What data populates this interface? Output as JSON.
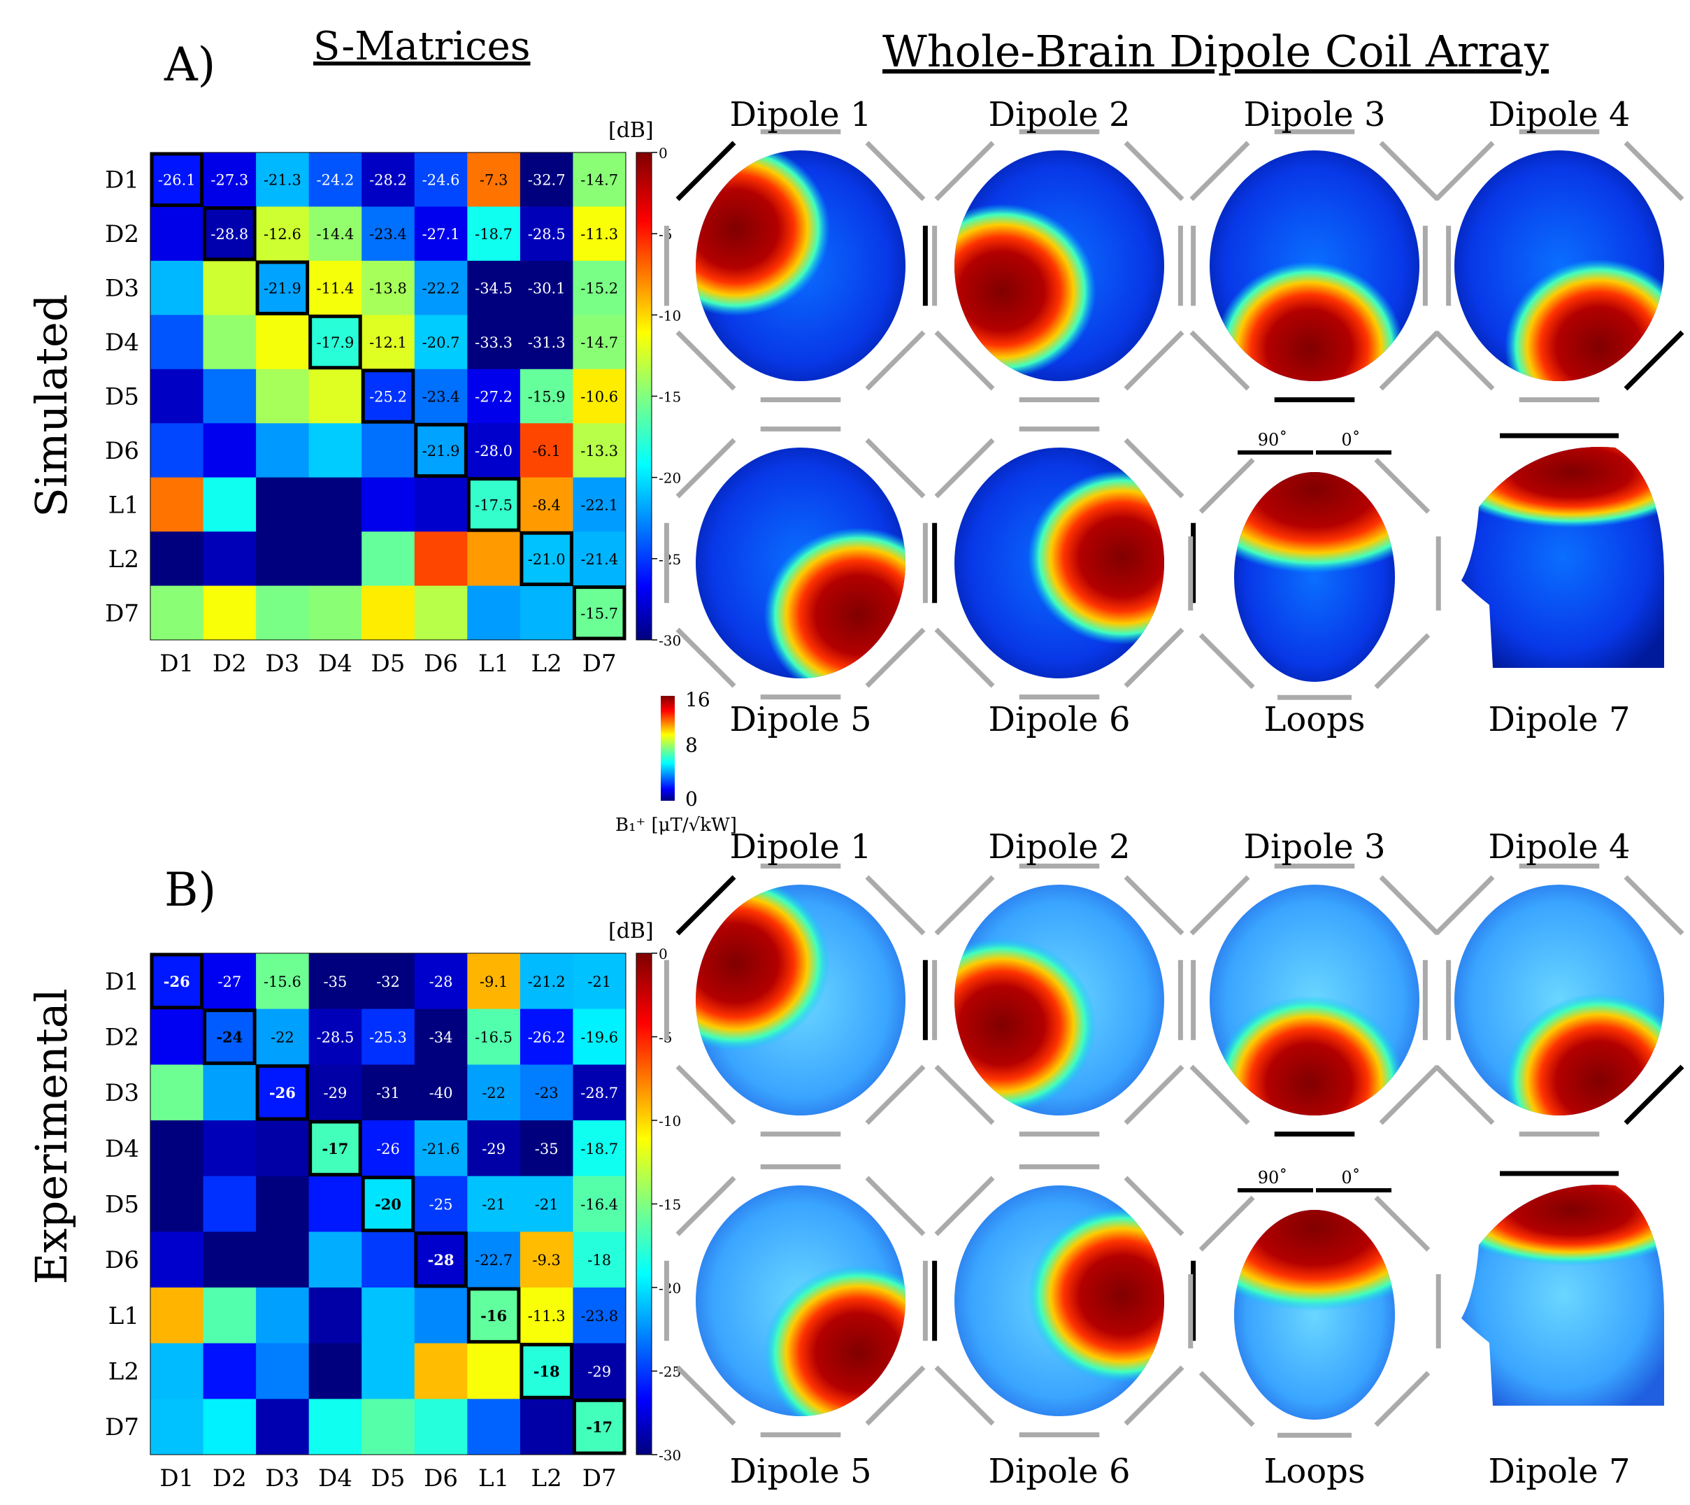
{
  "panel_a": {
    "letter": "A)",
    "s_title": "S-Matrices",
    "array_title": "Whole-Brain Dipole Coil Array",
    "row_label": "Simulated"
  },
  "panel_b": {
    "letter": "B)",
    "row_label": "Experimental"
  },
  "colors": {
    "hot": "#7f0000",
    "cold": "#00007f",
    "element_line": "#000000",
    "coil_outline": "#aaaaaa"
  },
  "chart_data": [
    {
      "type": "heatmap",
      "title": "S-Matrices (Simulated)",
      "units_label": "[dB]",
      "rows": [
        "D1",
        "D2",
        "D3",
        "D4",
        "D5",
        "D6",
        "L1",
        "L2",
        "D7"
      ],
      "cols": [
        "D1",
        "D2",
        "D3",
        "D4",
        "D5",
        "D6",
        "L1",
        "L2",
        "D7"
      ],
      "colorbar": {
        "ticks": [
          "0",
          "-5",
          "-10",
          "-15",
          "-20",
          "-25",
          "-30"
        ],
        "range": [
          -30,
          0
        ],
        "colormap": "jet"
      },
      "values": [
        [
          -26.1,
          -27.3,
          -21.3,
          -24.2,
          -28.2,
          -24.6,
          -7.3,
          -32.7,
          -14.7
        ],
        [
          -27.3,
          -28.8,
          -12.6,
          -14.4,
          -23.4,
          -27.1,
          -18.7,
          -28.5,
          -11.3
        ],
        [
          -21.3,
          -12.6,
          -21.9,
          -11.4,
          -13.8,
          -22.2,
          -34.5,
          -30.1,
          -15.2
        ],
        [
          -24.2,
          -14.4,
          -11.4,
          -17.9,
          -12.1,
          -20.7,
          -33.3,
          -31.3,
          -14.7
        ],
        [
          -28.2,
          -23.4,
          -13.8,
          -12.1,
          -25.2,
          -23.4,
          -27.2,
          -15.9,
          -10.6
        ],
        [
          -24.6,
          -27.1,
          -22.2,
          -20.7,
          -23.4,
          -21.9,
          -28.0,
          -6.1,
          -13.3
        ],
        [
          -7.3,
          -18.7,
          -34.5,
          -33.3,
          -27.2,
          -28.0,
          -17.5,
          -8.4,
          -22.1
        ],
        [
          -32.7,
          -28.5,
          -30.1,
          -31.3,
          -15.9,
          -6.1,
          -8.4,
          -21.0,
          -21.4
        ],
        [
          -14.7,
          -11.3,
          -15.2,
          -14.7,
          -10.6,
          -13.3,
          -22.1,
          -21.4,
          -15.7
        ]
      ],
      "cell_labels": [
        [
          "-26.1",
          "-27.3",
          "-21.3",
          "-24.2",
          "-28.2",
          "-24.6",
          "-7.3",
          "-32.7",
          "-14.7"
        ],
        [
          "",
          "-28.8",
          "-12.6",
          "-14.4",
          "-23.4",
          "-27.1",
          "-18.7",
          "-28.5",
          "-11.3"
        ],
        [
          "",
          "",
          "-21.9",
          "-11.4",
          "-13.8",
          "-22.2",
          "-34.5",
          "-30.1",
          "-15.2"
        ],
        [
          "",
          "",
          "",
          "-17.9",
          "-12.1",
          "-20.7",
          "-33.3",
          "-31.3",
          "-14.7"
        ],
        [
          "",
          "",
          "",
          "",
          "-25.2",
          "-23.4",
          "-27.2",
          "-15.9",
          "-10.6"
        ],
        [
          "",
          "",
          "",
          "",
          "",
          "-21.9",
          "-28.0",
          "-6.1",
          "-13.3"
        ],
        [
          "",
          "",
          "",
          "",
          "",
          "",
          "-17.5",
          "-8.4",
          "-22.1"
        ],
        [
          "",
          "",
          "",
          "",
          "",
          "",
          "",
          "-21.0",
          "-21.4"
        ],
        [
          "",
          "",
          "",
          "",
          "",
          "",
          "",
          "",
          "-15.7"
        ]
      ]
    },
    {
      "type": "heatmap",
      "title": "S-Matrices (Experimental)",
      "units_label": "[dB]",
      "rows": [
        "D1",
        "D2",
        "D3",
        "D4",
        "D5",
        "D6",
        "L1",
        "L2",
        "D7"
      ],
      "cols": [
        "D1",
        "D2",
        "D3",
        "D4",
        "D5",
        "D6",
        "L1",
        "L2",
        "D7"
      ],
      "colorbar": {
        "ticks": [
          "0",
          "-5",
          "-10",
          "-15",
          "-20",
          "-25",
          "-30"
        ],
        "range": [
          -30,
          0
        ],
        "colormap": "jet"
      },
      "values": [
        [
          -26,
          -27,
          -15.6,
          -35,
          -32,
          -28,
          -9.1,
          -21.2,
          -21
        ],
        [
          -27,
          -24,
          -22,
          -28.5,
          -25.3,
          -34,
          -16.5,
          -26.2,
          -19.6
        ],
        [
          -15.6,
          -22,
          -26,
          -29,
          -31,
          -40,
          -22,
          -23,
          -28.7
        ],
        [
          -35,
          -28.5,
          -29,
          -17,
          -26,
          -21.6,
          -29,
          -35,
          -18.7
        ],
        [
          -32,
          -25.3,
          -31,
          -26,
          -20,
          -25,
          -21,
          -21,
          -16.4
        ],
        [
          -28,
          -34,
          -40,
          -21.6,
          -25,
          -28,
          -22.7,
          -9.3,
          -18
        ],
        [
          -9.1,
          -16.5,
          -22,
          -29,
          -21,
          -22.7,
          -16,
          -11.3,
          -23.8
        ],
        [
          -21.2,
          -26.2,
          -23,
          -35,
          -21,
          -9.3,
          -11.3,
          -18,
          -29
        ],
        [
          -21,
          -19.6,
          -28.7,
          -18.7,
          -16.4,
          -18,
          -23.8,
          -29,
          -17
        ]
      ],
      "cell_labels": [
        [
          "-26",
          "-27",
          "-15.6",
          "-35",
          "-32",
          "-28",
          "-9.1",
          "-21.2",
          "-21"
        ],
        [
          "",
          "-24",
          "-22",
          "-28.5",
          "-25.3",
          "-34",
          "-16.5",
          "-26.2",
          "-19.6"
        ],
        [
          "",
          "",
          "-26",
          "-29",
          "-31",
          "-40",
          "-22",
          "-23",
          "-28.7"
        ],
        [
          "",
          "",
          "",
          "-17",
          "-26",
          "-21.6",
          "-29",
          "-35",
          "-18.7"
        ],
        [
          "",
          "",
          "",
          "",
          "-20",
          "-25",
          "-21",
          "-21",
          "-16.4"
        ],
        [
          "",
          "",
          "",
          "",
          "",
          "-28",
          "-22.7",
          "-9.3",
          "-18"
        ],
        [
          "",
          "",
          "",
          "",
          "",
          "",
          "-16",
          "-11.3",
          "-23.8"
        ],
        [
          "",
          "",
          "",
          "",
          "",
          "",
          "",
          "-18",
          "-29"
        ],
        [
          "",
          "",
          "",
          "",
          "",
          "",
          "",
          "",
          "-17"
        ]
      ]
    }
  ],
  "b1_colorbar": {
    "ticks": [
      "16",
      "8",
      "0"
    ],
    "range": [
      0,
      16
    ],
    "label": "B₁⁺ [μT/√kW]"
  },
  "maps": {
    "simulated": [
      {
        "label": "Dipole 1",
        "hotspot": "left-front"
      },
      {
        "label": "Dipole 2",
        "hotspot": "left"
      },
      {
        "label": "Dipole 3",
        "hotspot": "bottom-left"
      },
      {
        "label": "Dipole 4",
        "hotspot": "bottom-right"
      },
      {
        "label": "Dipole 5",
        "hotspot": "lower-right"
      },
      {
        "label": "Dipole 6",
        "hotspot": "right"
      },
      {
        "label": "Loops",
        "hotspot": "top",
        "angle_left": "90˚",
        "angle_right": "0˚"
      },
      {
        "label": "Dipole 7",
        "hotspot": "top (sagittal)"
      }
    ],
    "experimental": [
      {
        "label": "Dipole 1",
        "hotspot": "left-front"
      },
      {
        "label": "Dipole 2",
        "hotspot": "left"
      },
      {
        "label": "Dipole 3",
        "hotspot": "bottom-left"
      },
      {
        "label": "Dipole 4",
        "hotspot": "bottom-right"
      },
      {
        "label": "Dipole 5",
        "hotspot": "lower-right"
      },
      {
        "label": "Dipole 6",
        "hotspot": "right"
      },
      {
        "label": "Loops",
        "hotspot": "top",
        "angle_left": "90˚",
        "angle_right": "0˚"
      },
      {
        "label": "Dipole 7",
        "hotspot": "top (sagittal)"
      }
    ]
  }
}
